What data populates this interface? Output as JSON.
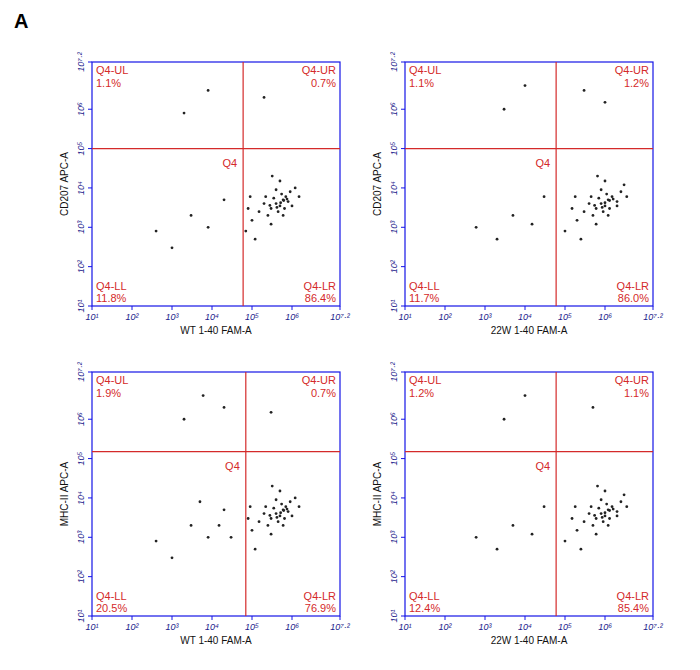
{
  "panel_label": "A",
  "chart_data": [
    {
      "type": "scatter",
      "xlabel": "WT 1-40 FAM-A",
      "ylabel": "CD207 APC-A",
      "log": true,
      "color": "#222222",
      "marker": "dot",
      "xlim": [
        10,
        15848932
      ],
      "ylim": [
        10,
        15848932
      ],
      "xticks": [
        {
          "value": 10,
          "label": "10¹"
        },
        {
          "value": 100,
          "label": "10²"
        },
        {
          "value": 1000,
          "label": "10³"
        },
        {
          "value": 10000,
          "label": "10⁴"
        },
        {
          "value": 100000,
          "label": "10⁵"
        },
        {
          "value": 1000000,
          "label": "10⁶"
        },
        {
          "value": 15848932,
          "label": "10⁷·²"
        }
      ],
      "yticks": [
        {
          "value": 10,
          "label": "10¹"
        },
        {
          "value": 100,
          "label": "10²"
        },
        {
          "value": 1000,
          "label": "10³"
        },
        {
          "value": 10000,
          "label": "10⁴"
        },
        {
          "value": 100000,
          "label": "10⁵"
        },
        {
          "value": 1000000,
          "label": "10⁶"
        },
        {
          "value": 15848932,
          "label": "10⁷·²"
        }
      ],
      "gate": {
        "name": "Q4",
        "x": 60000,
        "y": 100000
      },
      "quadrants": {
        "names": [
          "Q4-UL",
          "Q4-UR",
          "Q4-LL",
          "Q4-LR"
        ],
        "values": [
          1.1,
          0.7,
          11.8,
          86.4
        ],
        "value_labels": [
          "1.1%",
          "0.7%",
          "11.8%",
          "86.4%"
        ]
      },
      "x": [
        300000.0,
        400000.0,
        500000.0,
        600000.0,
        450000.0,
        700000.0,
        800000.0,
        350000.0,
        550000.0,
        250000.0,
        150000.0,
        100000.0,
        900000.0,
        650000.0,
        200000.0,
        1200000.0,
        300000.0,
        500000.0,
        80000.0,
        70000.0,
        1500000.0,
        400000.0,
        220000.0,
        600000.0,
        1000000.0,
        320000.0,
        120000.0,
        90000.0,
        520000.0,
        420000.0,
        750000.0,
        280000.0,
        620000.0,
        1000.0,
        3000.0,
        8000.0,
        20000.0,
        400.0,
        2000.0,
        8000.0,
        200000.0
      ],
      "y": [
        3000.0,
        4000.0,
        3500.0,
        5000.0,
        2500.0,
        6000.0,
        4500.0,
        5500.0,
        7000.0,
        2000.0,
        2500.0,
        1500.0,
        8000.0,
        3000.0,
        4000.0,
        10000.0,
        1200.0,
        15000.0,
        3000.0,
        800.0,
        6000.0,
        9000.0,
        6000.0,
        2000.0,
        3500.0,
        20000.0,
        500.0,
        6000.0,
        4200.0,
        3200.0,
        5200.0,
        3600.0,
        4800.0,
        300.0,
        2000.0,
        1000.0,
        5000.0,
        800.0,
        800000.0,
        3000000.0,
        2000000.0
      ]
    },
    {
      "type": "scatter",
      "xlabel": "22W 1-40 FAM-A",
      "ylabel": "CD207 APC-A",
      "log": true,
      "color": "#222222",
      "marker": "dot",
      "xlim": [
        10,
        15848932
      ],
      "ylim": [
        10,
        15848932
      ],
      "xticks": [
        {
          "value": 10,
          "label": "10¹"
        },
        {
          "value": 100,
          "label": "10²"
        },
        {
          "value": 1000,
          "label": "10³"
        },
        {
          "value": 10000,
          "label": "10⁴"
        },
        {
          "value": 100000,
          "label": "10⁵"
        },
        {
          "value": 1000000,
          "label": "10⁶"
        },
        {
          "value": 15848932,
          "label": "10⁷·²"
        }
      ],
      "yticks": [
        {
          "value": 10,
          "label": "10¹"
        },
        {
          "value": 100,
          "label": "10²"
        },
        {
          "value": 1000,
          "label": "10³"
        },
        {
          "value": 10000,
          "label": "10⁴"
        },
        {
          "value": 100000,
          "label": "10⁵"
        },
        {
          "value": 1000000,
          "label": "10⁶"
        },
        {
          "value": 15848932,
          "label": "10⁷·²"
        }
      ],
      "gate": {
        "name": "Q4",
        "x": 60000,
        "y": 100000
      },
      "quadrants": {
        "names": [
          "Q4-UL",
          "Q4-UR",
          "Q4-LL",
          "Q4-LR"
        ],
        "values": [
          1.1,
          1.2,
          11.7,
          86.0
        ],
        "value_labels": [
          "1.1%",
          "1.2%",
          "11.7%",
          "86.0%"
        ]
      },
      "x": [
        600000.0,
        800000.0,
        1000000.0,
        1200000.0,
        900000.0,
        1500000.0,
        2000000.0,
        700000.0,
        1100000.0,
        500000.0,
        300000.0,
        200000.0,
        2500000.0,
        1300000.0,
        400000.0,
        3000000.0,
        600000.0,
        1000000.0,
        150000.0,
        100000.0,
        3500000.0,
        800000.0,
        450000.0,
        1200000.0,
        2000000.0,
        650000.0,
        250000.0,
        180000.0,
        1000000.0,
        850000.0,
        1600000.0,
        550000.0,
        1300000.0,
        2000.0,
        5000.0,
        15000.0,
        30000.0,
        600.0,
        3000.0,
        10000.0,
        300000.0,
        1000000.0
      ],
      "y": [
        3000.0,
        4000.0,
        3500.0,
        5000.0,
        2500.0,
        6000.0,
        4500.0,
        5500.0,
        7000.0,
        2000.0,
        2500.0,
        1500.0,
        8000.0,
        3000.0,
        4000.0,
        12000.0,
        1200.0,
        15000.0,
        3000.0,
        800.0,
        6000.0,
        9000.0,
        6000.0,
        2000.0,
        3500.0,
        20000.0,
        500.0,
        6000.0,
        4200.0,
        3200.0,
        5200.0,
        3600.0,
        4800.0,
        500.0,
        2000.0,
        1200.0,
        6000.0,
        1000.0,
        1000000.0,
        4000000.0,
        3000000.0,
        1500000.0
      ]
    },
    {
      "type": "scatter",
      "xlabel": "WT 1-40 FAM-A",
      "ylabel": "MHC-II APC-A",
      "log": true,
      "color": "#222222",
      "marker": "dot",
      "xlim": [
        10,
        15848932
      ],
      "ylim": [
        10,
        15848932
      ],
      "xticks": [
        {
          "value": 10,
          "label": "10¹"
        },
        {
          "value": 100,
          "label": "10²"
        },
        {
          "value": 1000,
          "label": "10³"
        },
        {
          "value": 10000,
          "label": "10⁴"
        },
        {
          "value": 100000,
          "label": "10⁵"
        },
        {
          "value": 1000000,
          "label": "10⁶"
        },
        {
          "value": 15848932,
          "label": "10⁷·²"
        }
      ],
      "yticks": [
        {
          "value": 10,
          "label": "10¹"
        },
        {
          "value": 100,
          "label": "10²"
        },
        {
          "value": 1000,
          "label": "10³"
        },
        {
          "value": 10000,
          "label": "10⁴"
        },
        {
          "value": 100000,
          "label": "10⁵"
        },
        {
          "value": 1000000,
          "label": "10⁶"
        },
        {
          "value": 15848932,
          "label": "10⁷·²"
        }
      ],
      "gate": {
        "name": "Q4",
        "x": 70000,
        "y": 150000
      },
      "quadrants": {
        "names": [
          "Q4-UL",
          "Q4-UR",
          "Q4-LL",
          "Q4-LR"
        ],
        "values": [
          1.9,
          0.7,
          20.5,
          76.9
        ],
        "value_labels": [
          "1.9%",
          "0.7%",
          "20.5%",
          "76.9%"
        ]
      },
      "x": [
        300000.0,
        400000.0,
        500000.0,
        600000.0,
        450000.0,
        700000.0,
        800000.0,
        350000.0,
        550000.0,
        250000.0,
        150000.0,
        100000.0,
        900000.0,
        650000.0,
        200000.0,
        1200000.0,
        300000.0,
        500000.0,
        80000.0,
        1500000.0,
        400000.0,
        220000.0,
        600000.0,
        1000000.0,
        320000.0,
        120000.0,
        90000.0,
        520000.0,
        420000.0,
        750000.0,
        280000.0,
        620000.0,
        1000.0,
        3000.0,
        8000.0,
        20000.0,
        400.0,
        15000.0,
        5000.0,
        30000.0,
        2000.0,
        6000.0,
        20000.0,
        300000.0
      ],
      "y": [
        3000.0,
        4000.0,
        3500.0,
        5000.0,
        2500.0,
        6000.0,
        4500.0,
        5500.0,
        7000.0,
        2000.0,
        2500.0,
        1500.0,
        8000.0,
        3000.0,
        4000.0,
        10000.0,
        1200.0,
        15000.0,
        3000.0,
        6000.0,
        9000.0,
        6000.0,
        2000.0,
        3500.0,
        20000.0,
        500.0,
        6000.0,
        4200.0,
        3200.0,
        5200.0,
        3600.0,
        4800.0,
        300.0,
        2000.0,
        1000.0,
        5000.0,
        800.0,
        2000.0,
        8000.0,
        1000.0,
        1000000.0,
        4000000.0,
        2000000.0,
        1500000.0
      ]
    },
    {
      "type": "scatter",
      "xlabel": "22W 1-40 FAM-A",
      "ylabel": "MHC-II APC-A",
      "log": true,
      "color": "#222222",
      "marker": "dot",
      "xlim": [
        10,
        15848932
      ],
      "ylim": [
        10,
        15848932
      ],
      "xticks": [
        {
          "value": 10,
          "label": "10¹"
        },
        {
          "value": 100,
          "label": "10²"
        },
        {
          "value": 1000,
          "label": "10³"
        },
        {
          "value": 10000,
          "label": "10⁴"
        },
        {
          "value": 100000,
          "label": "10⁵"
        },
        {
          "value": 1000000,
          "label": "10⁶"
        },
        {
          "value": 15848932,
          "label": "10⁷·²"
        }
      ],
      "yticks": [
        {
          "value": 10,
          "label": "10¹"
        },
        {
          "value": 100,
          "label": "10²"
        },
        {
          "value": 1000,
          "label": "10³"
        },
        {
          "value": 10000,
          "label": "10⁴"
        },
        {
          "value": 100000,
          "label": "10⁵"
        },
        {
          "value": 1000000,
          "label": "10⁶"
        },
        {
          "value": 15848932,
          "label": "10⁷·²"
        }
      ],
      "gate": {
        "name": "Q4",
        "x": 60000,
        "y": 150000
      },
      "quadrants": {
        "names": [
          "Q4-UL",
          "Q4-UR",
          "Q4-LL",
          "Q4-LR"
        ],
        "values": [
          1.2,
          1.1,
          12.4,
          85.4
        ],
        "value_labels": [
          "1.2%",
          "1.1%",
          "12.4%",
          "85.4%"
        ]
      },
      "x": [
        600000.0,
        800000.0,
        1000000.0,
        1200000.0,
        900000.0,
        1500000.0,
        2000000.0,
        700000.0,
        1100000.0,
        500000.0,
        300000.0,
        200000.0,
        2500000.0,
        1300000.0,
        400000.0,
        3000000.0,
        600000.0,
        1000000.0,
        150000.0,
        100000.0,
        3500000.0,
        800000.0,
        450000.0,
        1200000.0,
        2000000.0,
        650000.0,
        250000.0,
        180000.0,
        1000000.0,
        850000.0,
        1600000.0,
        550000.0,
        1300000.0,
        2000.0,
        5000.0,
        15000.0,
        30000.0,
        600.0,
        3000.0,
        10000.0,
        500000.0
      ],
      "y": [
        3000.0,
        4000.0,
        3500.0,
        5000.0,
        2500.0,
        6000.0,
        4500.0,
        5500.0,
        7000.0,
        2000.0,
        2500.0,
        1500.0,
        8000.0,
        3000.0,
        4000.0,
        12000.0,
        1200.0,
        15000.0,
        3000.0,
        800.0,
        6000.0,
        9000.0,
        6000.0,
        2000.0,
        3500.0,
        20000.0,
        500.0,
        6000.0,
        4200.0,
        3200.0,
        5200.0,
        3600.0,
        4800.0,
        500.0,
        2000.0,
        1200.0,
        6000.0,
        1000.0,
        1000000.0,
        4000000.0,
        2000000.0
      ]
    }
  ]
}
